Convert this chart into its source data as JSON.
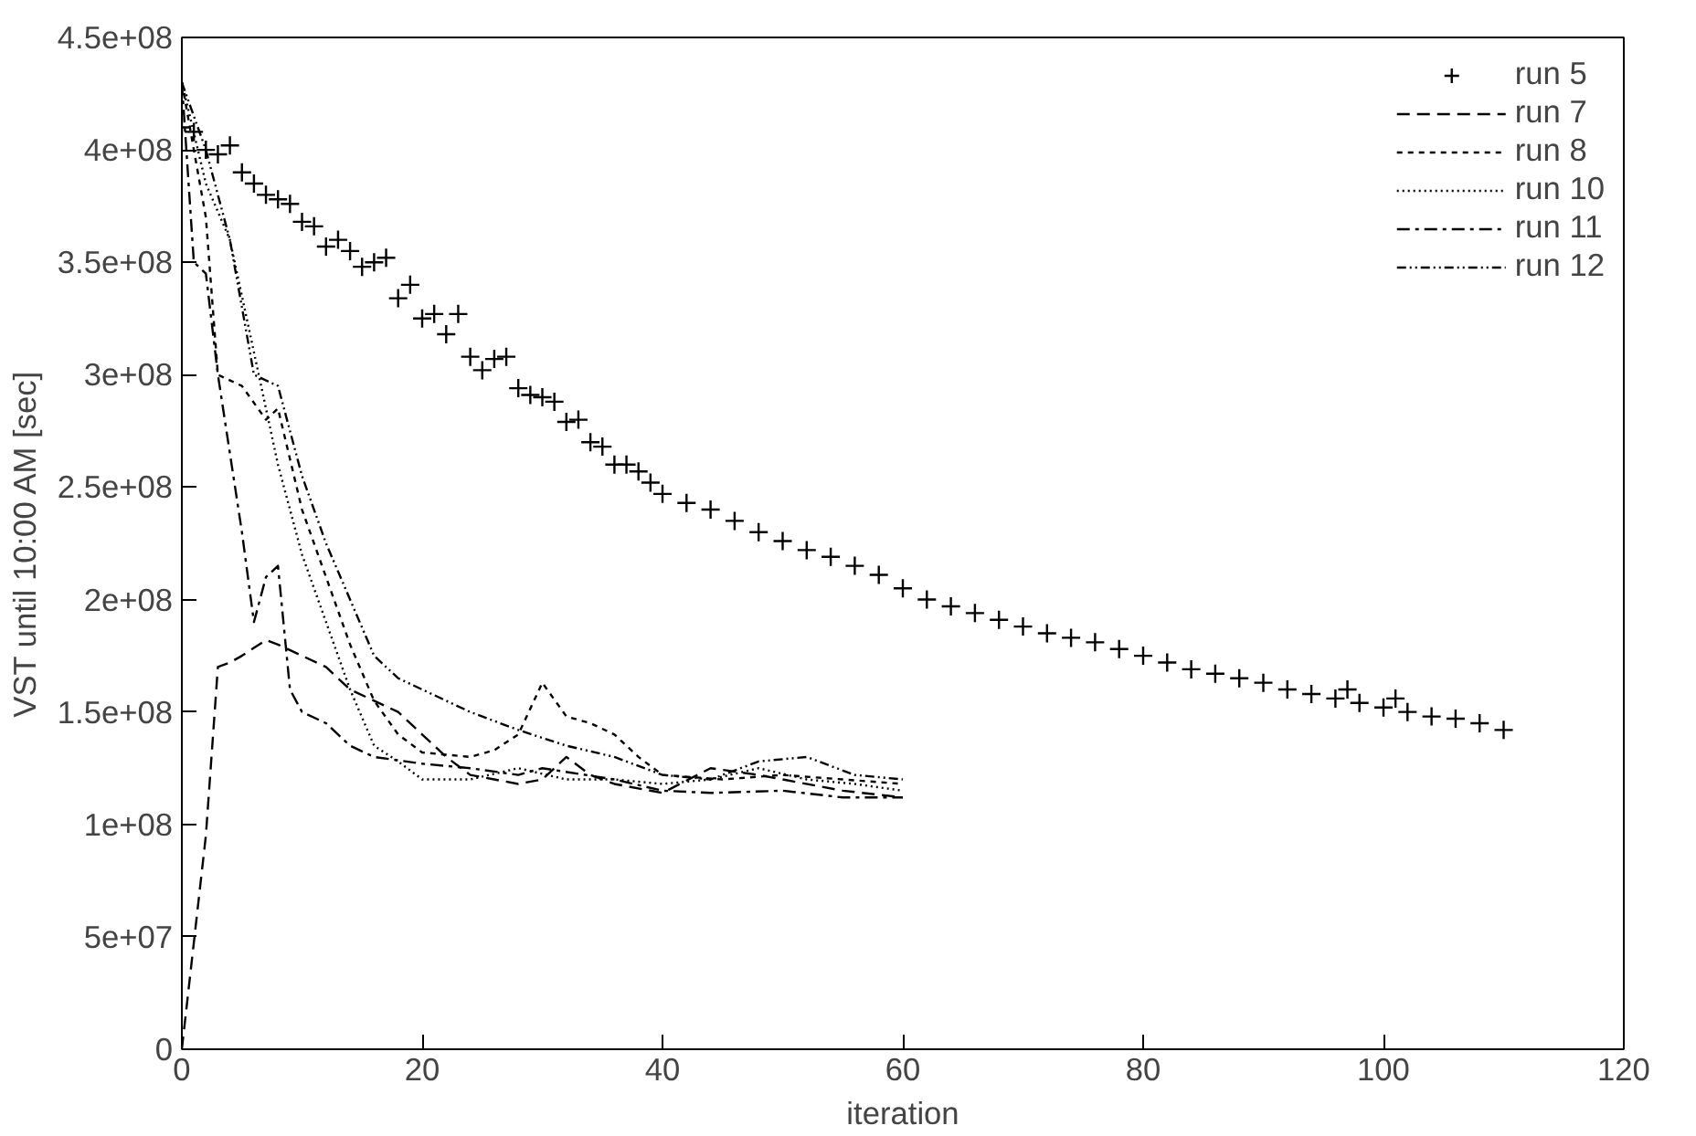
{
  "chart_data": {
    "type": "line",
    "xlabel": "iteration",
    "ylabel": "VST until 10:00 AM [sec]",
    "xlim": [
      0,
      120
    ],
    "xticks": [
      0,
      20,
      40,
      60,
      80,
      100,
      120
    ],
    "ylim": [
      0,
      450000000
    ],
    "yticks": [
      0,
      {
        "value": 50000000,
        "label": "5e+07"
      },
      {
        "value": 100000000,
        "label": "1e+08"
      },
      {
        "value": 150000000,
        "label": "1.5e+08"
      },
      {
        "value": 200000000,
        "label": "2e+08"
      },
      {
        "value": 250000000,
        "label": "2.5e+08"
      },
      {
        "value": 300000000,
        "label": "3e+08"
      },
      {
        "value": 350000000,
        "label": "3.5e+08"
      },
      {
        "value": 400000000,
        "label": "4e+08"
      },
      {
        "value": 450000000,
        "label": "4.5e+08"
      }
    ],
    "grid": false,
    "legend": "top right",
    "series": [
      {
        "name": "run 5",
        "type": "scatter",
        "marker": "cross",
        "color": "#000000",
        "x": [
          0,
          1,
          2,
          3,
          4,
          5,
          6,
          7,
          8,
          9,
          10,
          11,
          12,
          13,
          14,
          15,
          16,
          17,
          18,
          19,
          20,
          21,
          22,
          23,
          24,
          25,
          26,
          27,
          28,
          29,
          30,
          31,
          32,
          33,
          34,
          35,
          36,
          37,
          38,
          39,
          40,
          42,
          44,
          46,
          48,
          50,
          52,
          54,
          56,
          58,
          60,
          62,
          64,
          66,
          68,
          70,
          72,
          74,
          76,
          78,
          80,
          82,
          84,
          86,
          88,
          90,
          92,
          94,
          96,
          97,
          98,
          100,
          101,
          102,
          104,
          106,
          108,
          110
        ],
        "values": [
          410000000,
          408000000,
          400000000,
          398000000,
          402000000,
          390000000,
          385000000,
          380000000,
          378000000,
          376000000,
          368000000,
          366000000,
          357000000,
          360000000,
          355000000,
          348000000,
          350000000,
          352000000,
          334000000,
          340000000,
          325000000,
          327000000,
          318000000,
          327000000,
          308000000,
          302000000,
          307000000,
          308000000,
          294000000,
          291000000,
          290000000,
          288000000,
          279000000,
          280000000,
          270000000,
          268000000,
          260000000,
          260000000,
          257000000,
          252000000,
          247000000,
          243000000,
          240000000,
          235000000,
          230000000,
          226000000,
          222000000,
          219000000,
          215000000,
          211000000,
          205000000,
          200000000,
          197000000,
          194000000,
          191000000,
          188000000,
          185000000,
          183000000,
          181000000,
          178000000,
          175000000,
          172000000,
          169000000,
          167000000,
          165000000,
          163000000,
          160000000,
          158000000,
          156000000,
          160000000,
          154000000,
          152000000,
          156000000,
          150000000,
          148000000,
          147000000,
          145000000,
          142000000
        ]
      },
      {
        "name": "run 7",
        "line_style": "dashed",
        "color": "#000000",
        "x": [
          0,
          2,
          3,
          4,
          5,
          7,
          8,
          10,
          12,
          14,
          16,
          18,
          20,
          22,
          24,
          26,
          28,
          30,
          32,
          34,
          36,
          40,
          44,
          48,
          50,
          55,
          60
        ],
        "values": [
          0,
          95000000,
          170000000,
          172000000,
          175000000,
          182000000,
          180000000,
          175000000,
          170000000,
          160000000,
          155000000,
          150000000,
          140000000,
          130000000,
          122000000,
          120000000,
          118000000,
          120000000,
          130000000,
          122000000,
          118000000,
          114000000,
          125000000,
          122000000,
          120000000,
          115000000,
          112000000
        ]
      },
      {
        "name": "run 8",
        "line_style": "dashed2",
        "color": "#000000",
        "x": [
          0,
          2,
          3,
          5,
          7,
          8,
          10,
          12,
          14,
          16,
          18,
          20,
          24,
          26,
          28,
          30,
          32,
          34,
          36,
          38,
          40,
          45,
          50,
          55,
          60
        ],
        "values": [
          430000000,
          370000000,
          300000000,
          295000000,
          280000000,
          285000000,
          240000000,
          210000000,
          180000000,
          155000000,
          140000000,
          132000000,
          130000000,
          133000000,
          140000000,
          163000000,
          148000000,
          145000000,
          140000000,
          130000000,
          122000000,
          120000000,
          122000000,
          120000000,
          118000000
        ]
      },
      {
        "name": "run 10",
        "line_style": "dotted",
        "color": "#000000",
        "x": [
          0,
          2,
          4,
          6,
          8,
          10,
          12,
          14,
          16,
          18,
          20,
          24,
          28,
          32,
          36,
          40,
          44,
          48,
          52,
          56,
          60
        ],
        "values": [
          430000000,
          385000000,
          360000000,
          310000000,
          260000000,
          220000000,
          190000000,
          160000000,
          135000000,
          128000000,
          120000000,
          120000000,
          125000000,
          120000000,
          120000000,
          118000000,
          120000000,
          125000000,
          120000000,
          118000000,
          115000000
        ]
      },
      {
        "name": "run 11",
        "line_style": "dashdot",
        "color": "#000000",
        "x": [
          0,
          1,
          2,
          3,
          5,
          6,
          7,
          8,
          9,
          10,
          12,
          14,
          16,
          20,
          24,
          28,
          30,
          36,
          40,
          44,
          50,
          55,
          60
        ],
        "values": [
          430000000,
          350000000,
          345000000,
          300000000,
          230000000,
          190000000,
          210000000,
          215000000,
          160000000,
          150000000,
          145000000,
          135000000,
          130000000,
          127000000,
          125000000,
          122000000,
          125000000,
          120000000,
          115000000,
          114000000,
          115000000,
          112000000,
          112000000
        ]
      },
      {
        "name": "run 12",
        "line_style": "dashdotdot",
        "color": "#000000",
        "x": [
          0,
          2,
          4,
          6,
          8,
          10,
          12,
          14,
          16,
          18,
          20,
          24,
          28,
          32,
          36,
          40,
          44,
          48,
          52,
          56,
          60
        ],
        "values": [
          430000000,
          400000000,
          360000000,
          300000000,
          295000000,
          255000000,
          225000000,
          200000000,
          175000000,
          165000000,
          160000000,
          150000000,
          142000000,
          135000000,
          130000000,
          122000000,
          120000000,
          128000000,
          130000000,
          122000000,
          120000000
        ]
      }
    ]
  }
}
